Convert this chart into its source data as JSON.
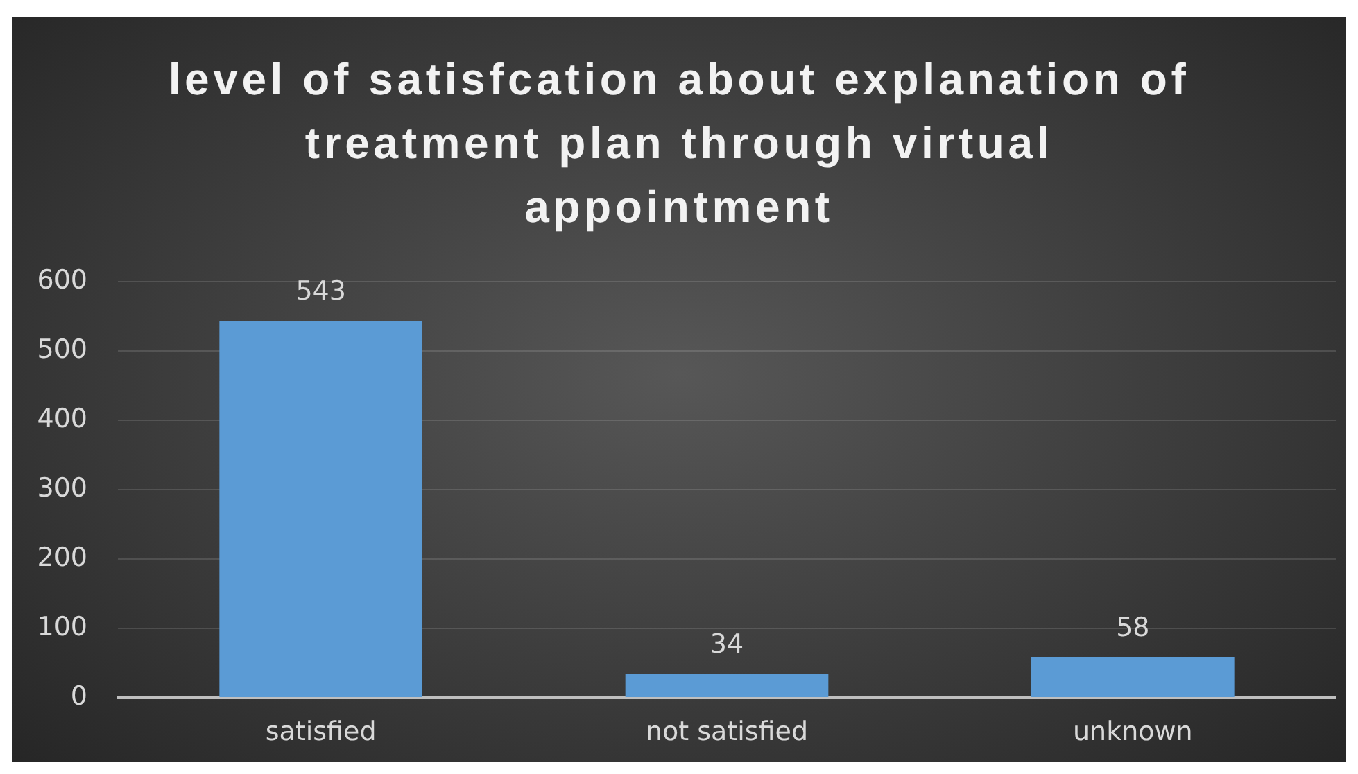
{
  "chart_data": {
    "type": "bar",
    "title": "level of satisfcation about explanation of treatment plan through virtual appointment",
    "categories": [
      "satisfied",
      "not satisfied",
      "unknown"
    ],
    "values": [
      543,
      34,
      58
    ],
    "color": "#5b9bd5",
    "ylim": [
      0,
      600
    ],
    "yticks": [
      0,
      100,
      200,
      300,
      400,
      500,
      600
    ],
    "grid": "y",
    "data_labels": true
  }
}
